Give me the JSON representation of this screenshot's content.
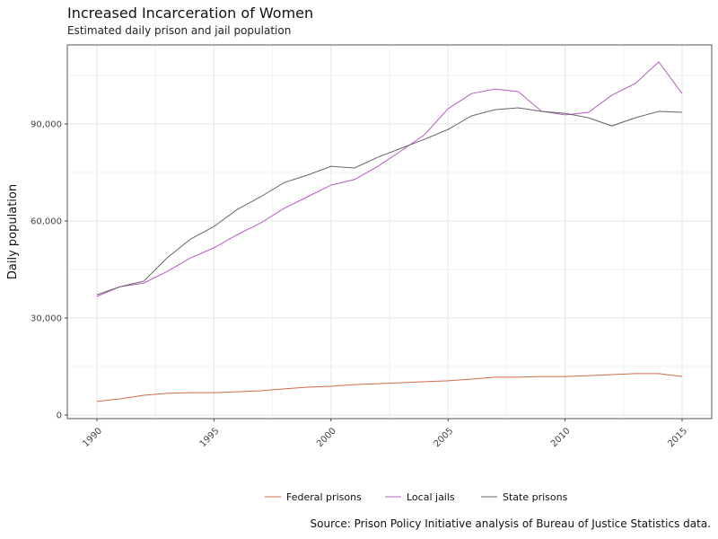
{
  "chart_data": {
    "type": "line",
    "title": "Increased Incarceration of Women",
    "subtitle": "Estimated daily prison and jail population",
    "xlabel": "",
    "ylabel": "Daily population",
    "source": "Source: Prison Policy Initiative analysis of Bureau of Justice Statistics data.",
    "xlim": [
      1989,
      2016
    ],
    "ylim": [
      -1000,
      114000
    ],
    "x_ticks": [
      1990,
      1995,
      2000,
      2005,
      2010,
      2015
    ],
    "y_ticks": [
      0,
      30000,
      60000,
      90000
    ],
    "y_tick_labels": [
      "0",
      "30,000",
      "60,000",
      "90,000"
    ],
    "grid": true,
    "legend_position": "bottom",
    "x": [
      1990,
      1991,
      1992,
      1993,
      1994,
      1995,
      1996,
      1997,
      1998,
      1999,
      2000,
      2001,
      2002,
      2003,
      2004,
      2005,
      2006,
      2007,
      2008,
      2009,
      2010,
      2011,
      2012,
      2013,
      2014,
      2015
    ],
    "series": [
      {
        "name": "Federal prisons",
        "color": "#d2694a",
        "values": [
          4200,
          5000,
          6100,
          6700,
          6900,
          6900,
          7200,
          7500,
          8100,
          8600,
          8900,
          9400,
          9700,
          10000,
          10300,
          10600,
          11100,
          11700,
          11700,
          11900,
          11900,
          12200,
          12500,
          12800,
          12800,
          11900
        ]
      },
      {
        "name": "Local jails",
        "color": "#b45cc0",
        "values": [
          36700,
          39700,
          40800,
          44400,
          48600,
          51700,
          55800,
          59400,
          63900,
          67500,
          71100,
          72800,
          76900,
          81700,
          86700,
          94700,
          99400,
          100800,
          100000,
          93900,
          92800,
          93600,
          98900,
          102500,
          109200,
          99400
        ]
      },
      {
        "name": "State prisons",
        "color": "#666666",
        "values": [
          37200,
          39700,
          41400,
          48600,
          54400,
          58300,
          63600,
          67500,
          71900,
          74200,
          76900,
          76400,
          79700,
          82500,
          85300,
          88300,
          92500,
          94400,
          95000,
          93900,
          93300,
          91900,
          89400,
          91900,
          93900,
          93600
        ]
      }
    ]
  }
}
